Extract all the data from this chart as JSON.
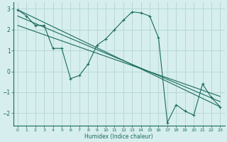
{
  "xlabel": "Humidex (Indice chaleur)",
  "background_color": "#d6eeee",
  "grid_color": "#b8d8d8",
  "line_color": "#1a6b5a",
  "xlim": [
    -0.5,
    23.5
  ],
  "ylim": [
    -2.6,
    3.3
  ],
  "yticks": [
    -2,
    -1,
    0,
    1,
    2,
    3
  ],
  "xticks": [
    0,
    1,
    2,
    3,
    4,
    5,
    6,
    7,
    8,
    9,
    10,
    11,
    12,
    13,
    14,
    15,
    16,
    17,
    18,
    19,
    20,
    21,
    22,
    23
  ],
  "series1_x": [
    0,
    1,
    2,
    3,
    4,
    5,
    6,
    7,
    8,
    9,
    10,
    11,
    12,
    13,
    14,
    15,
    16,
    17,
    18,
    19,
    20,
    21,
    22,
    23
  ],
  "series1_y": [
    2.95,
    2.65,
    2.2,
    2.2,
    1.1,
    1.1,
    -0.35,
    -0.2,
    0.35,
    1.25,
    1.55,
    2.0,
    2.45,
    2.85,
    2.8,
    2.65,
    1.6,
    -2.45,
    -1.6,
    -1.9,
    -2.1,
    -0.6,
    -1.25,
    -1.7
  ],
  "series2_x": [
    0,
    23
  ],
  "series2_y": [
    2.95,
    -1.7
  ],
  "series3_x": [
    0,
    23
  ],
  "series3_y": [
    2.65,
    -1.45
  ],
  "series4_x": [
    0,
    23
  ],
  "series4_y": [
    2.2,
    -1.2
  ]
}
